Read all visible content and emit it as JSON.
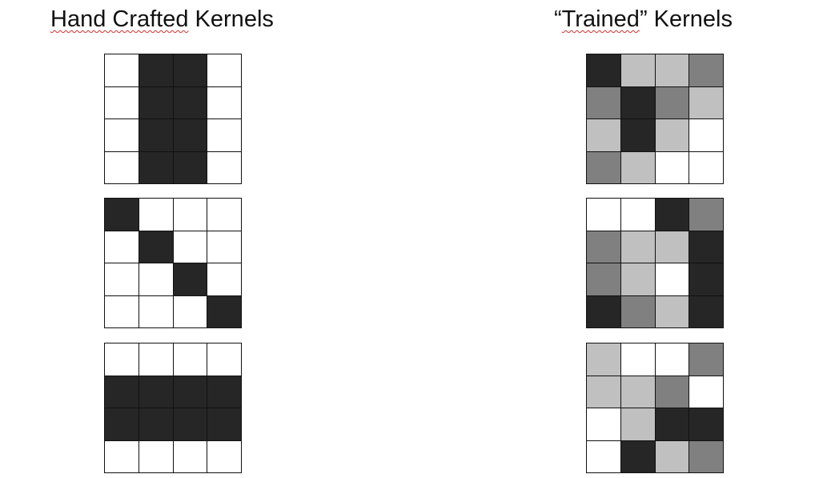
{
  "titles": {
    "left": {
      "pre": "",
      "squiggle": "Hand Crafted",
      "post": " Kernels"
    },
    "right": {
      "pre": "“",
      "squiggle": "Trained",
      "post": "” Kernels"
    }
  },
  "palette": {
    "0": "#ffffff",
    "1": "#c0c0c0",
    "2": "#808080",
    "3": "#262626"
  },
  "kernels": {
    "hand_crafted": [
      [
        [
          0,
          3,
          3,
          0
        ],
        [
          0,
          3,
          3,
          0
        ],
        [
          0,
          3,
          3,
          0
        ],
        [
          0,
          3,
          3,
          0
        ]
      ],
      [
        [
          3,
          0,
          0,
          0
        ],
        [
          0,
          3,
          0,
          0
        ],
        [
          0,
          0,
          3,
          0
        ],
        [
          0,
          0,
          0,
          3
        ]
      ],
      [
        [
          0,
          0,
          0,
          0
        ],
        [
          3,
          3,
          3,
          3
        ],
        [
          3,
          3,
          3,
          3
        ],
        [
          0,
          0,
          0,
          0
        ]
      ]
    ],
    "trained": [
      [
        [
          3,
          1,
          1,
          2
        ],
        [
          2,
          3,
          2,
          1
        ],
        [
          1,
          3,
          1,
          0
        ],
        [
          2,
          1,
          0,
          0
        ]
      ],
      [
        [
          0,
          0,
          3,
          2
        ],
        [
          2,
          1,
          1,
          3
        ],
        [
          2,
          1,
          0,
          3
        ],
        [
          3,
          2,
          1,
          3
        ]
      ],
      [
        [
          1,
          0,
          0,
          2
        ],
        [
          1,
          1,
          2,
          0
        ],
        [
          0,
          1,
          3,
          3
        ],
        [
          0,
          3,
          1,
          2
        ]
      ]
    ]
  }
}
